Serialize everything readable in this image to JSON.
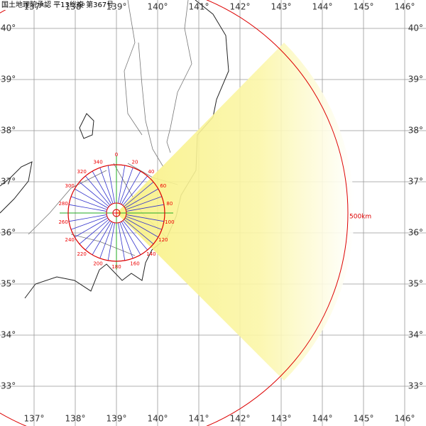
{
  "header": "国土地理院承認 平13総複 第367号",
  "lon_labels": [
    "137°",
    "138°",
    "139°",
    "140°",
    "141°",
    "142°",
    "143°",
    "144°",
    "145°",
    "146°"
  ],
  "lat_labels": [
    "40°",
    "39°",
    "38°",
    "37°",
    "36°",
    "35°",
    "34°",
    "33°"
  ],
  "compass_labels": [
    "0",
    "20",
    "40",
    "60",
    "80",
    "100",
    "120",
    "140",
    "160",
    "180",
    "200",
    "220",
    "240",
    "260",
    "280",
    "300",
    "320",
    "340"
  ],
  "range_label": "500km"
}
